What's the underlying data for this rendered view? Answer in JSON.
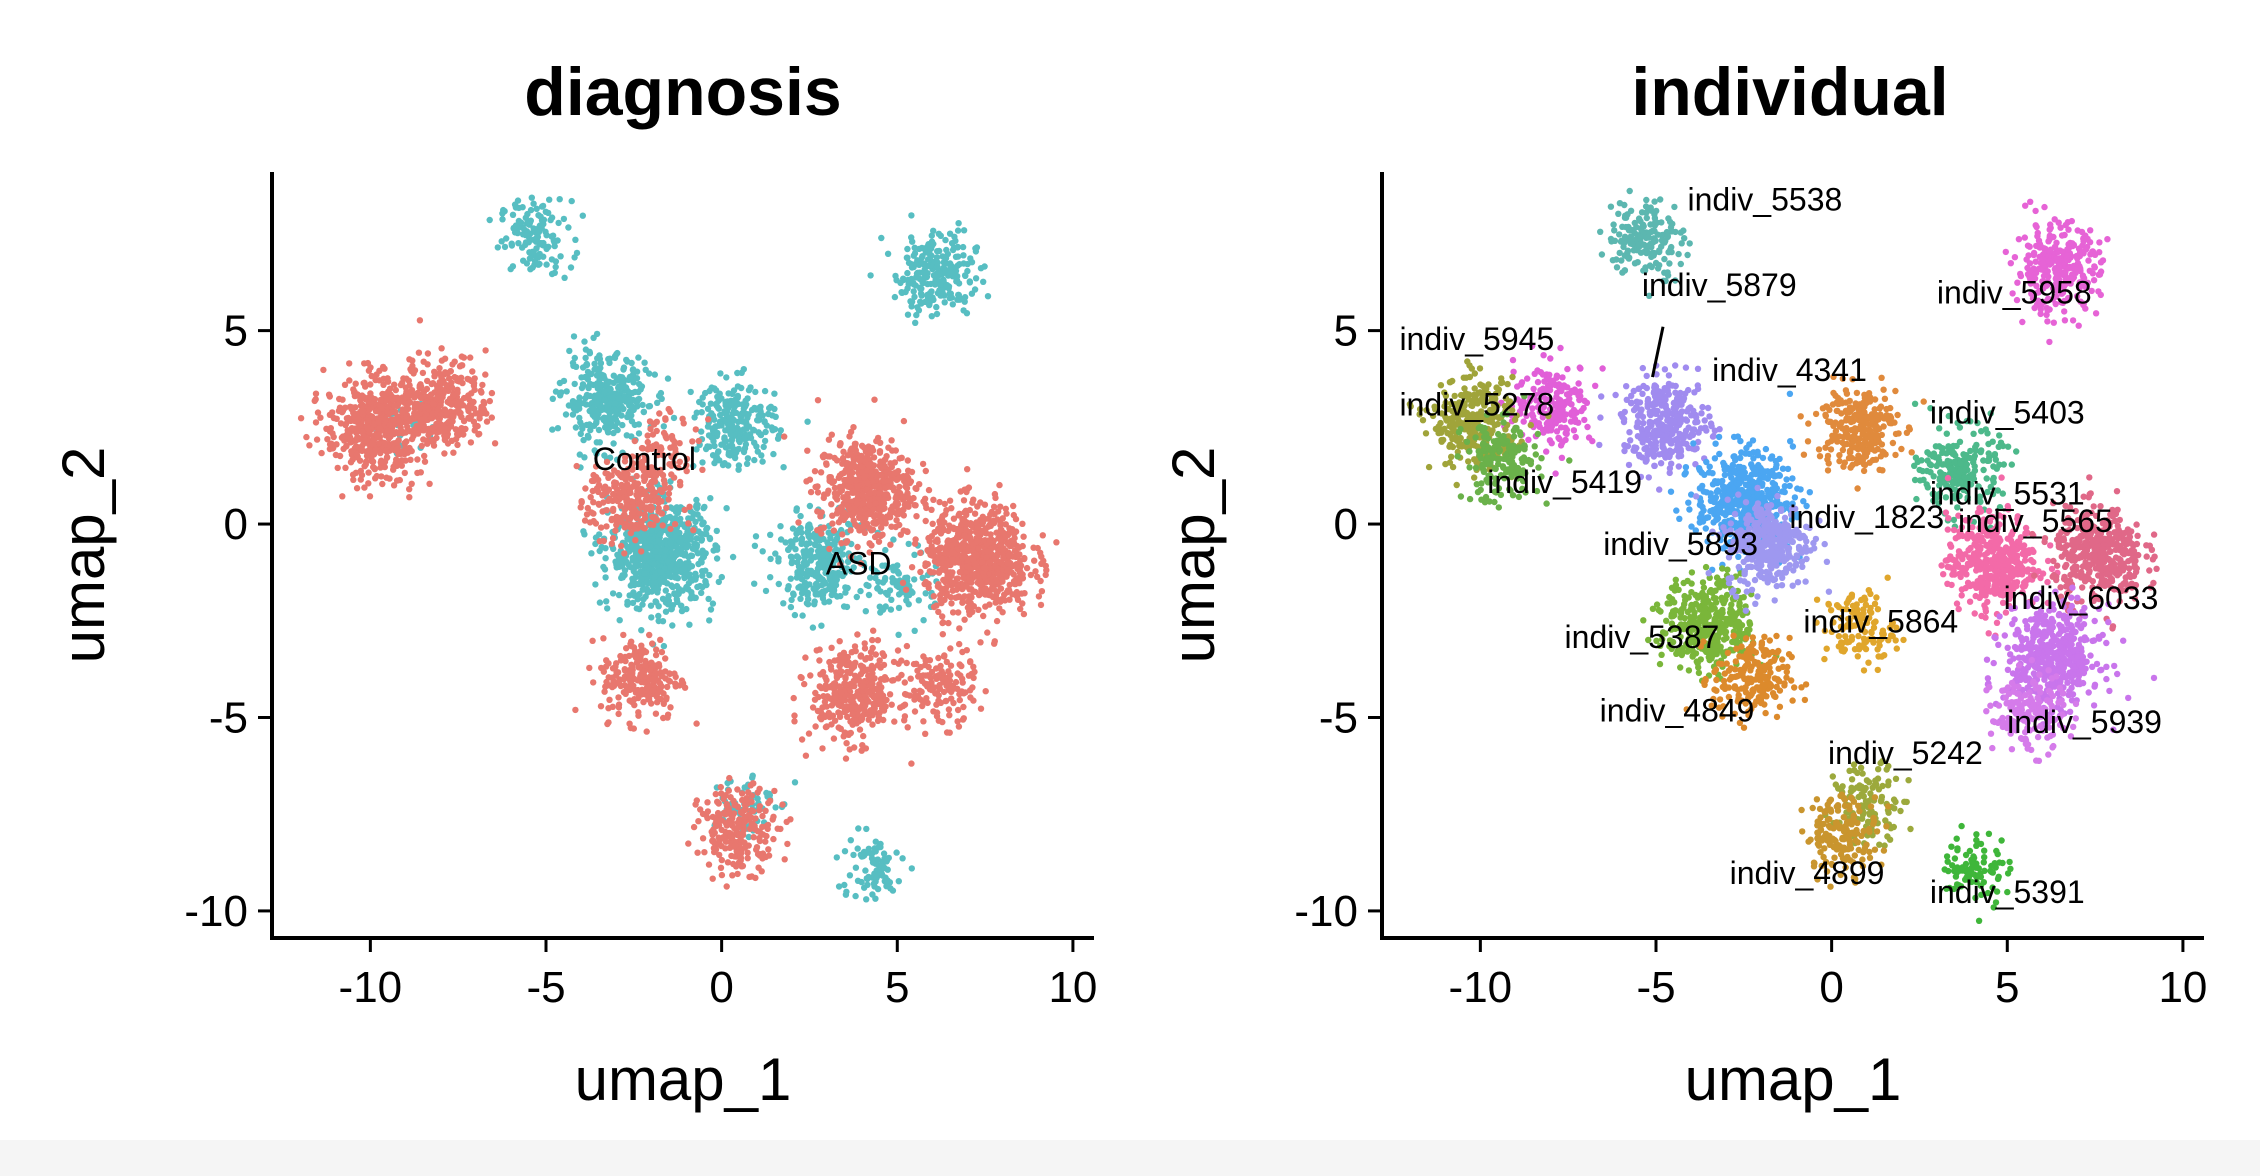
{
  "chart_data": [
    {
      "type": "scatter",
      "title": "diagnosis",
      "xlabel": "umap_1",
      "ylabel": "umap_2",
      "xlim": [
        -12.8,
        10.6
      ],
      "ylim": [
        -10.7,
        9.1
      ],
      "xticks": [
        -10,
        -5,
        0,
        5,
        10
      ],
      "yticks": [
        -10,
        -5,
        0,
        5
      ],
      "xtick_labels": [
        "-10",
        "-5",
        "0",
        "5",
        "10"
      ],
      "ytick_labels": [
        "-10",
        "-5",
        "0",
        "5"
      ],
      "grid": false,
      "groups": [
        {
          "name": "Control",
          "color": "#57BEC2",
          "clusters": [
            {
              "x": -5.3,
              "y": 7.4,
              "n": 130
            },
            {
              "x": 6.1,
              "y": 6.5,
              "n": 240
            },
            {
              "x": -3.3,
              "y": 3.2,
              "n": 320
            },
            {
              "x": -1.7,
              "y": -0.8,
              "n": 700
            },
            {
              "x": 0.4,
              "y": 2.6,
              "n": 240
            },
            {
              "x": 2.8,
              "y": -1.0,
              "n": 300
            },
            {
              "x": 0.6,
              "y": -7.2,
              "n": 60
            },
            {
              "x": 4.2,
              "y": -8.9,
              "n": 80
            },
            {
              "x": -9.1,
              "y": 2.4,
              "n": 25
            },
            {
              "x": 5.2,
              "y": -1.6,
              "n": 90
            }
          ]
        },
        {
          "name": "ASD",
          "color": "#E8776E",
          "clusters": [
            {
              "x": -9.9,
              "y": 2.5,
              "n": 520
            },
            {
              "x": -7.9,
              "y": 3.1,
              "n": 330
            },
            {
              "x": -2.6,
              "y": 0.6,
              "n": 280
            },
            {
              "x": -2.3,
              "y": -4.0,
              "n": 220
            },
            {
              "x": 4.1,
              "y": 0.9,
              "n": 520
            },
            {
              "x": 7.3,
              "y": -0.9,
              "n": 720
            },
            {
              "x": 3.8,
              "y": -4.4,
              "n": 360
            },
            {
              "x": 6.2,
              "y": -4.2,
              "n": 140
            },
            {
              "x": 0.5,
              "y": -7.9,
              "n": 230
            },
            {
              "x": -1.5,
              "y": 2.1,
              "n": 60
            }
          ]
        }
      ],
      "labels": [
        {
          "text": "Control",
          "x": -2.2,
          "y": 1.4
        },
        {
          "text": "ASD",
          "x": 3.9,
          "y": -1.3
        }
      ]
    },
    {
      "type": "scatter",
      "title": "individual",
      "xlabel": "umap_1",
      "ylabel": "umap_2",
      "xlim": [
        -12.8,
        10.6
      ],
      "ylim": [
        -10.7,
        9.1
      ],
      "xticks": [
        -10,
        -5,
        0,
        5,
        10
      ],
      "yticks": [
        -10,
        -5,
        0,
        5
      ],
      "xtick_labels": [
        "-10",
        "-5",
        "0",
        "5",
        "10"
      ],
      "ytick_labels": [
        "-10",
        "-5",
        "0",
        "5"
      ],
      "grid": false,
      "groups": [
        {
          "name": "indiv_5538",
          "color": "#5CB7B0",
          "clusters": [
            {
              "x": -5.3,
              "y": 7.4,
              "n": 170
            }
          ]
        },
        {
          "name": "indiv_5958",
          "color": "#E663D6",
          "clusters": [
            {
              "x": 6.4,
              "y": 6.6,
              "n": 300
            }
          ]
        },
        {
          "name": "indiv_5945",
          "color": "#E15FD8",
          "clusters": [
            {
              "x": -7.9,
              "y": 3.1,
              "n": 210
            }
          ]
        },
        {
          "name": "indiv_5278",
          "color": "#A0A43A",
          "clusters": [
            {
              "x": -10.2,
              "y": 2.6,
              "n": 300
            }
          ]
        },
        {
          "name": "indiv_5419",
          "color": "#6AB14A",
          "clusters": [
            {
              "x": -9.4,
              "y": 1.6,
              "n": 180
            }
          ]
        },
        {
          "name": "indiv_5879",
          "color": "#A08BEF",
          "clusters": [
            {
              "x": -4.7,
              "y": 2.6,
              "n": 330
            }
          ]
        },
        {
          "name": "indiv_4341",
          "color": "#E08A3C",
          "clusters": [
            {
              "x": 0.7,
              "y": 2.5,
              "n": 260
            }
          ]
        },
        {
          "name": "indiv_5403",
          "color": "#4DB98B",
          "clusters": [
            {
              "x": 3.7,
              "y": 1.4,
              "n": 220
            }
          ]
        },
        {
          "name": "indiv_5893",
          "color": "#4BA6F2",
          "clusters": [
            {
              "x": -2.5,
              "y": 0.6,
              "n": 520
            }
          ]
        },
        {
          "name": "indiv_5387",
          "color": "#7AB63A",
          "clusters": [
            {
              "x": -3.5,
              "y": -2.6,
              "n": 380
            }
          ]
        },
        {
          "name": "indiv_4849",
          "color": "#DC8A2C",
          "clusters": [
            {
              "x": -2.3,
              "y": -4.0,
              "n": 200
            }
          ]
        },
        {
          "name": "indiv_1823",
          "color": "#9E98F0",
          "clusters": [
            {
              "x": -1.8,
              "y": -0.5,
              "n": 320
            }
          ]
        },
        {
          "name": "indiv_5864",
          "color": "#E0A62C",
          "clusters": [
            {
              "x": 0.8,
              "y": -2.7,
              "n": 120
            }
          ]
        },
        {
          "name": "indiv_5531",
          "color": "#F36AA8",
          "clusters": [
            {
              "x": 4.6,
              "y": -1.0,
              "n": 420
            }
          ]
        },
        {
          "name": "indiv_5565",
          "color": "#E06888",
          "clusters": [
            {
              "x": 7.6,
              "y": -0.8,
              "n": 400
            }
          ]
        },
        {
          "name": "indiv_6033",
          "color": "#C975EC",
          "clusters": [
            {
              "x": 6.3,
              "y": -3.4,
              "n": 480
            }
          ]
        },
        {
          "name": "indiv_5939",
          "color": "#D57BEA",
          "clusters": [
            {
              "x": 5.6,
              "y": -4.9,
              "n": 160
            }
          ]
        },
        {
          "name": "indiv_5242",
          "color": "#9CA93C",
          "clusters": [
            {
              "x": 1.1,
              "y": -7.2,
              "n": 120
            }
          ]
        },
        {
          "name": "indiv_4899",
          "color": "#C9952E",
          "clusters": [
            {
              "x": 0.3,
              "y": -8.0,
              "n": 160
            }
          ]
        },
        {
          "name": "indiv_5391",
          "color": "#3FB63A",
          "clusters": [
            {
              "x": 4.1,
              "y": -8.9,
              "n": 90
            }
          ]
        }
      ],
      "labels": [
        {
          "text": "indiv_5538",
          "x": -1.9,
          "y": 8.1
        },
        {
          "text": "indiv_5879",
          "x": -3.2,
          "y": 5.9
        },
        {
          "text": "indiv_5958",
          "x": 5.2,
          "y": 5.7
        },
        {
          "text": "indiv_5945",
          "x": -10.1,
          "y": 4.5
        },
        {
          "text": "indiv_4341",
          "x": -1.2,
          "y": 3.7
        },
        {
          "text": "indiv_5278",
          "x": -10.1,
          "y": 2.8
        },
        {
          "text": "indiv_5403",
          "x": 5.0,
          "y": 2.6
        },
        {
          "text": "indiv_5419",
          "x": -7.6,
          "y": 0.8
        },
        {
          "text": "indiv_5531",
          "x": 5.0,
          "y": 0.5
        },
        {
          "text": "indiv_1823",
          "x": 1.0,
          "y": -0.1
        },
        {
          "text": "indiv_5565",
          "x": 5.8,
          "y": -0.2
        },
        {
          "text": "indiv_5893",
          "x": -4.3,
          "y": -0.8
        },
        {
          "text": "indiv_6033",
          "x": 7.1,
          "y": -2.2
        },
        {
          "text": "indiv_5864",
          "x": 1.4,
          "y": -2.8
        },
        {
          "text": "indiv_5387",
          "x": -5.4,
          "y": -3.2
        },
        {
          "text": "indiv_4849",
          "x": -4.4,
          "y": -5.1
        },
        {
          "text": "indiv_5939",
          "x": 7.2,
          "y": -5.4
        },
        {
          "text": "indiv_5242",
          "x": 2.1,
          "y": -6.2
        },
        {
          "text": "indiv_4899",
          "x": -0.7,
          "y": -9.3
        },
        {
          "text": "indiv_5391",
          "x": 5.0,
          "y": -9.8
        }
      ],
      "leader_line": {
        "label": "indiv_5879",
        "from": [
          -4.8,
          5.1
        ],
        "to": [
          -5.1,
          3.8
        ]
      }
    }
  ]
}
